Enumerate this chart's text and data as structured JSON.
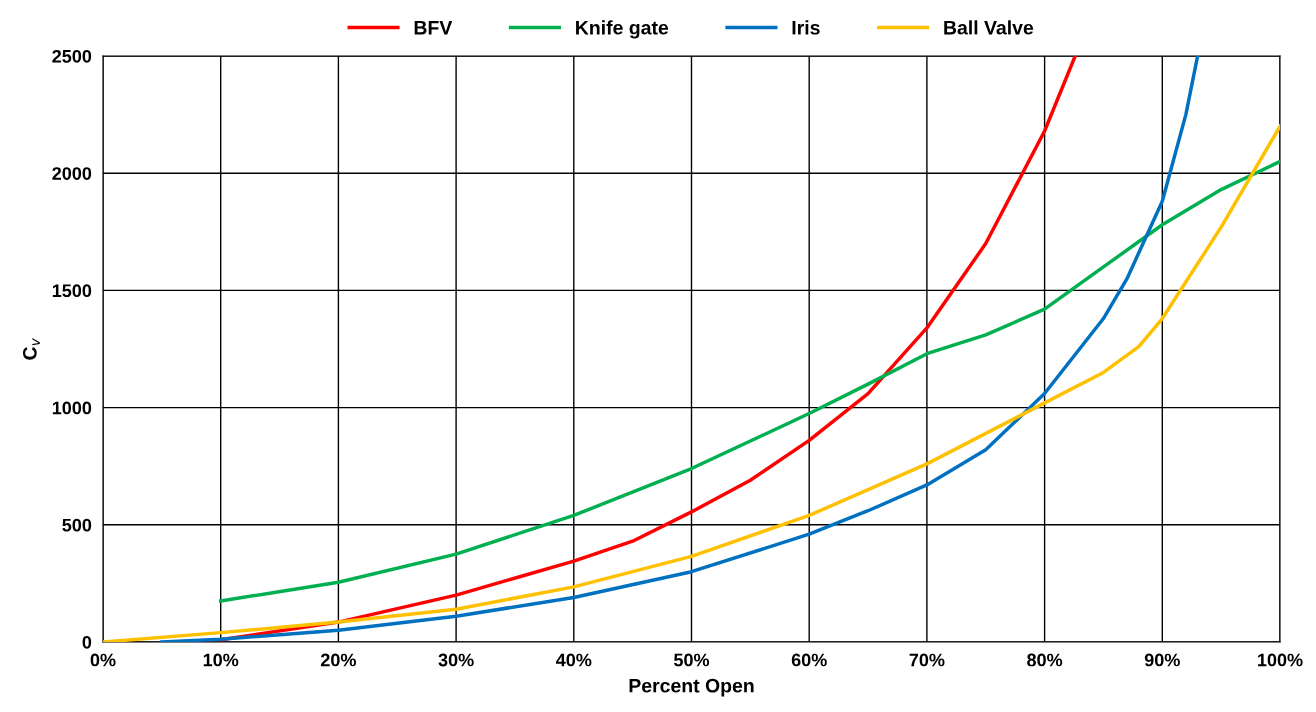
{
  "chart_data": {
    "type": "line",
    "xlabel": "Percent Open",
    "ylabel": "C$_{v}$",
    "xlim": [
      0,
      100
    ],
    "ylim": [
      0,
      2500
    ],
    "xticks": [
      {
        "value": 0,
        "label": "0%"
      },
      {
        "value": 10,
        "label": "10%"
      },
      {
        "value": 20,
        "label": "20%"
      },
      {
        "value": 30,
        "label": "30%"
      },
      {
        "value": 40,
        "label": "40%"
      },
      {
        "value": 50,
        "label": "50%"
      },
      {
        "value": 60,
        "label": "60%"
      },
      {
        "value": 70,
        "label": "70%"
      },
      {
        "value": 80,
        "label": "80%"
      },
      {
        "value": 90,
        "label": "90%"
      },
      {
        "value": 100,
        "label": "100%"
      }
    ],
    "yticks": [
      0,
      500,
      1000,
      1500,
      2000,
      2500
    ],
    "grid": true,
    "legend": "top",
    "marker": "none",
    "line_style": "solid",
    "series": [
      {
        "name": "BFV",
        "color": "#ff0000",
        "x": [
          10,
          20,
          30,
          40,
          45,
          50,
          55,
          60,
          65,
          70,
          75,
          80,
          82.6
        ],
        "values": [
          10,
          85,
          200,
          345,
          430,
          555,
          690,
          860,
          1060,
          1340,
          1700,
          2180,
          2500
        ]
      },
      {
        "name": "Knife gate",
        "color": "#00b050",
        "x": [
          10,
          20,
          30,
          40,
          50,
          60,
          65,
          70,
          75,
          80,
          85,
          90,
          95,
          100
        ],
        "values": [
          175,
          255,
          375,
          540,
          740,
          975,
          1100,
          1230,
          1310,
          1420,
          1600,
          1780,
          1930,
          2050
        ]
      },
      {
        "name": "Iris",
        "color": "#0070c0",
        "x": [
          5,
          10,
          20,
          30,
          40,
          50,
          60,
          65,
          70,
          75,
          80,
          85,
          87,
          90,
          92,
          93
        ],
        "values": [
          0,
          12,
          50,
          110,
          190,
          300,
          460,
          560,
          670,
          820,
          1060,
          1380,
          1550,
          1880,
          2250,
          2500
        ]
      },
      {
        "name": "Ball Valve",
        "color": "#ffc000",
        "x": [
          0,
          10,
          20,
          30,
          40,
          50,
          60,
          70,
          80,
          85,
          88,
          90,
          95,
          100
        ],
        "values": [
          0,
          40,
          85,
          140,
          235,
          365,
          540,
          760,
          1020,
          1150,
          1260,
          1380,
          1770,
          2200
        ]
      }
    ]
  }
}
